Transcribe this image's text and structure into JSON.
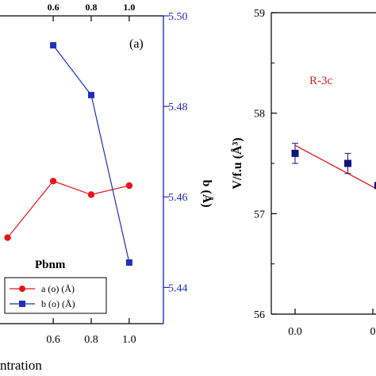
{
  "chart_data": [
    {
      "type": "line",
      "panel_label": "(a)",
      "phase_label": "Pbnm",
      "xlabel": "ntration",
      "y2label": "b (Å)",
      "x_ticks_bottom": [
        "0.6",
        "0.8",
        "1.0"
      ],
      "x_ticks_top": [
        "0.6",
        "0.8",
        "1.0"
      ],
      "y2_ticks": [
        "5.44",
        "5.46",
        "5.48",
        "5.50"
      ],
      "x_range": [
        0.32,
        1.18
      ],
      "y2_range": [
        5.432,
        5.5
      ],
      "legend_position": "bottom",
      "series": [
        {
          "name": "a (o) (Å)",
          "color": "#e8151b",
          "marker": "circle",
          "points": [
            [
              0.36,
              5.451
            ],
            [
              0.6,
              5.4635
            ],
            [
              0.8,
              5.4605
            ],
            [
              1.0,
              5.4625
            ]
          ],
          "axis_note": "plotted against hidden left axis; positions expressed on right-axis scale"
        },
        {
          "name": "b (o) (Å)",
          "color": "#1f2fbf",
          "marker": "square",
          "points": [
            [
              0.6,
              5.4935
            ],
            [
              0.8,
              5.4825
            ],
            [
              1.0,
              5.4455
            ]
          ]
        }
      ]
    },
    {
      "type": "scatter",
      "phase_label": "R-3c",
      "ylabel": "V/f.u (Å³)",
      "y_ticks": [
        "56",
        "57",
        "58",
        "59"
      ],
      "x_ticks": [
        "0.0",
        "0"
      ],
      "x_range": [
        -0.2,
        0.6
      ],
      "y_range": [
        56,
        59
      ],
      "series": [
        {
          "name": "",
          "color": "#12127a",
          "marker": "square",
          "points": [
            {
              "x": 0.0,
              "y": 57.6,
              "err": 0.1
            },
            {
              "x": 0.35,
              "y": 57.5,
              "err": 0.1
            },
            {
              "x": 0.55,
              "y": 57.28,
              "err": 0.0
            }
          ]
        }
      ],
      "fit_line": {
        "color": "#e8151b",
        "from": [
          0.0,
          57.68
        ],
        "to": [
          0.6,
          57.2
        ]
      }
    }
  ]
}
